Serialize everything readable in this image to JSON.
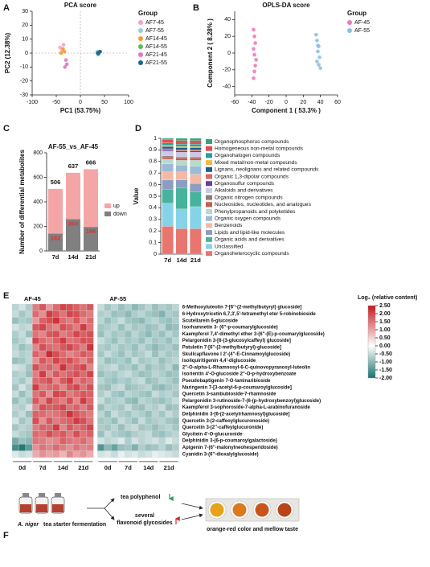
{
  "panel_labels": [
    "A",
    "B",
    "C",
    "D",
    "E",
    "F"
  ],
  "chart_data": [
    {
      "type": "scatter",
      "title": "PCA score",
      "x_label": "PC1 (53.75%)",
      "y_label": "PC2 (12.38%)",
      "xlim": [
        -100,
        100
      ],
      "ylim": [
        -30,
        30
      ],
      "xticks": [
        -100,
        -50,
        0,
        50,
        100
      ],
      "yticks": [
        -30,
        -20,
        -10,
        0,
        10,
        20,
        30
      ],
      "zero_lines": true,
      "legend_title": "Group",
      "series": [
        {
          "name": "AF7-45",
          "color": "#f4a3c6",
          "x": [
            -38,
            -35,
            -42
          ],
          "y": [
            2,
            6,
            4
          ]
        },
        {
          "name": "AF7-55",
          "color": "#9ecae1",
          "x": [
            35,
            38,
            40
          ],
          "y": [
            1,
            0,
            1
          ]
        },
        {
          "name": "AF14-45",
          "color": "#f39c35",
          "x": [
            -40,
            -36,
            -33
          ],
          "y": [
            0,
            3,
            1
          ]
        },
        {
          "name": "AF14-55",
          "color": "#5cb85c",
          "x": [
            36,
            39,
            37
          ],
          "y": [
            0,
            1,
            -1
          ]
        },
        {
          "name": "AF21-45",
          "color": "#e377c2",
          "x": [
            -30,
            -28,
            -32
          ],
          "y": [
            -5,
            -8,
            -10
          ]
        },
        {
          "name": "AF21-55",
          "color": "#1f5f9f",
          "x": [
            38,
            41,
            36
          ],
          "y": [
            0,
            1,
            0
          ]
        }
      ]
    },
    {
      "type": "scatter",
      "title": "OPLS-DA score",
      "x_label": "Component 1 ( 53.3% )",
      "y_label": "Component 2 ( 8.28% )",
      "xlim": [
        -60,
        60
      ],
      "ylim": [
        -50,
        50
      ],
      "xticks": [
        -60,
        -40,
        -20,
        0,
        20,
        40,
        60
      ],
      "yticks": [
        -40,
        -20,
        0,
        20,
        40
      ],
      "zero_lines": false,
      "legend_title": "Group",
      "series": [
        {
          "name": "AF-45",
          "color": "#f07ab8",
          "x": [
            -38,
            -37,
            -36,
            -38,
            -37,
            -35,
            -36,
            -37,
            -38
          ],
          "y": [
            28,
            20,
            12,
            5,
            -2,
            -8,
            -15,
            -22,
            -30
          ]
        },
        {
          "name": "AF-55",
          "color": "#8fbfe6",
          "x": [
            35,
            36,
            38,
            37,
            39,
            36,
            38,
            40,
            37
          ],
          "y": [
            22,
            15,
            8,
            2,
            -5,
            -10,
            -14,
            -18,
            9
          ]
        }
      ]
    },
    {
      "type": "bar",
      "stacked": true,
      "title": "AF-55_vs_AF-45",
      "y_label": "Number of differential metabolites",
      "categories": [
        "7d",
        "14d",
        "21d"
      ],
      "ylim": [
        0,
        800
      ],
      "yticks": [
        0,
        200,
        400,
        600,
        800
      ],
      "totals": [
        506,
        637,
        666
      ],
      "series": [
        {
          "name": "down",
          "color": "#808080",
          "label_color": "#e03030",
          "show_labels": true,
          "values": [
            142,
            260,
            196
          ]
        },
        {
          "name": "up",
          "color": "#f4a6a6",
          "show_labels": false,
          "values": [
            364,
            377,
            470
          ]
        }
      ]
    },
    {
      "type": "bar",
      "stacked": true,
      "y_label": "Value",
      "categories": [
        "7d",
        "14d",
        "21d"
      ],
      "ylim": [
        0,
        1
      ],
      "yticks": [
        0,
        0.1,
        0.2,
        0.3,
        0.4,
        0.5,
        0.6,
        0.7,
        0.8,
        0.9,
        1
      ],
      "series": [
        {
          "name": "Organoheterocyclic compounds",
          "color": "#e8766f",
          "values": [
            0.24,
            0.22,
            0.22
          ]
        },
        {
          "name": "Unclassified",
          "color": "#86d3e8",
          "values": [
            0.2,
            0.17,
            0.19
          ]
        },
        {
          "name": "Organic acids and derivatives",
          "color": "#47b39c",
          "values": [
            0.12,
            0.18,
            0.13
          ]
        },
        {
          "name": "Lipids and lipid-like molecules",
          "color": "#8b9dc3",
          "values": [
            0.08,
            0.07,
            0.07
          ]
        },
        {
          "name": "Benzenoids",
          "color": "#f4b9a6",
          "values": [
            0.07,
            0.07,
            0.08
          ]
        },
        {
          "name": "Organic oxygen compounds",
          "color": "#9dbad5",
          "values": [
            0.07,
            0.06,
            0.07
          ]
        },
        {
          "name": "Phenylpropanoids and polyketides",
          "color": "#b3dccf",
          "values": [
            0.04,
            0.04,
            0.05
          ]
        },
        {
          "name": "Nucleosides, nucleotides, and analogues",
          "color": "#c65b4f",
          "values": [
            0.02,
            0.02,
            0.02
          ]
        },
        {
          "name": "Organic nitrogen compounds",
          "color": "#8f7f6f",
          "values": [
            0.01,
            0.01,
            0.01
          ]
        },
        {
          "name": "Alkaloids and derivatives",
          "color": "#c9c9e6",
          "values": [
            0.04,
            0.04,
            0.04
          ]
        },
        {
          "name": "Organosulfur compounds",
          "color": "#6a3fa0",
          "values": [
            0.01,
            0.01,
            0.01
          ]
        },
        {
          "name": "Organic 1,3-dipolar compounds",
          "color": "#d96a66",
          "values": [
            0.01,
            0.01,
            0.01
          ]
        },
        {
          "name": "Lignans, neolignans and related compounds",
          "color": "#1f5f8b",
          "values": [
            0.02,
            0.02,
            0.02
          ]
        },
        {
          "name": "Mixed metal/non-metal compounds",
          "color": "#f5b942",
          "values": [
            0.01,
            0.01,
            0.01
          ]
        },
        {
          "name": "Organohalogen compounds",
          "color": "#1fa0a5",
          "values": [
            0.02,
            0.02,
            0.02
          ]
        },
        {
          "name": "Homogeneous non-metal compounds",
          "color": "#e05050",
          "values": [
            0.03,
            0.03,
            0.03
          ]
        },
        {
          "name": "Organophosphorus compounds",
          "color": "#3aa37a",
          "values": [
            0.01,
            0.02,
            0.02
          ]
        }
      ]
    },
    {
      "type": "heatmap",
      "groups": [
        "AF-45",
        "AF-55"
      ],
      "column_labels": [
        "0d",
        "7d",
        "14d",
        "21d",
        "0d",
        "7d",
        "14d",
        "21d"
      ],
      "colorbar_title": "Log₂ (relative content)",
      "zlim": [
        -2,
        2.5
      ],
      "colors": [
        "#17736f",
        "#ffffff",
        "#c8171e"
      ],
      "zticks": [
        {
          "value": 2.5,
          "label": "2.50"
        },
        {
          "value": 2,
          "label": "2.00"
        },
        {
          "value": 1.5,
          "label": "1.50"
        },
        {
          "value": 1,
          "label": "1.00"
        },
        {
          "value": 0.5,
          "label": "0.50"
        },
        {
          "value": 0,
          "label": "0.00"
        },
        {
          "value": -0.5,
          "label": "-0.50"
        },
        {
          "value": -1,
          "label": "-1.00"
        },
        {
          "value": -1.5,
          "label": "-1.50"
        },
        {
          "value": -2,
          "label": "-2.00"
        }
      ],
      "rows": [
        "6-Methoxyluteolin 7-[6''-(2-methylbutyryl) glucoside]",
        "6-Hydroxytricetin 6,7,3',5'-tetramethyl eter 5-robinobioside",
        "Scutellarein 6-glucoside",
        "Isorhamnetin 3- (6''-p-coumarylglucoside)",
        "Kaempferol 7,4'-dimethyl ether 3-(6''-(E)-p-coumarylglucoside)",
        "Pelargonidin 3-[6-(3-glucosylcaffeyl) glucoside]",
        "Patuletin 7-[6''-(2-methylbutyryl)-glucoside]",
        "Skullcapflavone I 2'-(4''-E-Cinnamoylglucoside)",
        "Isoliquiritigenin 4,4'-diglucoside",
        "2''-O-alpha-L-Rhamnosyl-6-C-quinovopyranosyl-luteolin",
        "Isorientin 4'-O-glucoside 2''-O-p-hydroxybenzoate",
        "Pseudobaptigenin 7-O-laminaribioside",
        "Naringenin 7-[3-acetyl-6-p-coumaroylglucoside]",
        "Quercetin 3-sambubioside-7-rhamnoside",
        "Pelargonidin 3-rutinoside-7-(6-(p-hydroxybenzoyl)glucoside)",
        "Kaempferol 3-sophoroside-7-alpha-L-arabinofuranoside",
        "Delphinidin 3-[6-(2-acetylrhamnosyl)glucoside]",
        "Quercetin 3-(2-caffeoylglucuronoside)",
        "Quercetin 3-(2''-caffeylglucuronide)",
        "Glycitein 4'-O-glucuronide",
        "Delphinidin 3-(6-p-coumaroylgalactoside)",
        "Apigenin 7-(6''-malonylneohesperidoside)",
        "Cyanidin 3-(6''-dioxalylglucoside)"
      ],
      "values": [
        [
          -0.6,
          -0.4,
          -0.7,
          1.4,
          1.8,
          1.1,
          1.6,
          2.0,
          1.9,
          1.7,
          1.5,
          1.8,
          -0.5,
          -0.8,
          -0.6,
          -0.9,
          -0.7,
          -1.0,
          -0.8,
          -0.6,
          -0.9,
          -0.7,
          -0.8,
          -0.6
        ],
        [
          -0.5,
          -0.8,
          -0.6,
          1.6,
          1.2,
          2.1,
          1.8,
          1.5,
          2.0,
          1.9,
          1.6,
          1.4,
          -0.7,
          -0.6,
          -0.9,
          -0.8,
          -1.0,
          -0.7,
          -0.6,
          -0.8,
          -0.9,
          -1.1,
          -0.7,
          -0.8
        ],
        [
          -0.9,
          -0.7,
          -0.8,
          1.1,
          1.7,
          1.9,
          2.2,
          1.6,
          1.4,
          1.8,
          1.3,
          1.6,
          -0.6,
          -0.9,
          -0.7,
          -0.5,
          -0.8,
          -0.9,
          -1.0,
          -0.7,
          -0.6,
          -0.8,
          -0.9,
          -0.7
        ],
        [
          -0.4,
          -0.6,
          -0.5,
          1.8,
          2.0,
          1.5,
          1.3,
          1.9,
          1.7,
          1.4,
          2.1,
          1.5,
          -0.8,
          -0.7,
          -0.6,
          -0.9,
          -0.6,
          -0.8,
          -0.7,
          -0.9,
          -0.8,
          -0.6,
          -1.0,
          -0.9
        ],
        [
          -0.7,
          -0.5,
          -0.9,
          1.5,
          1.3,
          1.8,
          1.9,
          1.4,
          1.6,
          2.0,
          1.7,
          1.9,
          -0.9,
          -0.6,
          -0.8,
          -0.7,
          -0.9,
          -0.6,
          -0.8,
          -1.0,
          -0.7,
          -0.9,
          -0.6,
          -0.8
        ],
        [
          -0.8,
          -0.6,
          -0.4,
          2.0,
          1.6,
          1.4,
          1.7,
          2.1,
          1.5,
          1.6,
          1.9,
          1.8,
          -0.5,
          -0.7,
          -0.9,
          -0.6,
          -0.8,
          -0.7,
          -0.9,
          -0.6,
          -0.8,
          -0.7,
          -0.9,
          -0.6
        ],
        [
          -0.6,
          -0.9,
          -0.7,
          1.3,
          1.9,
          1.6,
          1.5,
          1.8,
          2.0,
          1.7,
          1.4,
          2.2,
          -0.7,
          -0.8,
          -0.6,
          -0.8,
          -0.7,
          -0.9,
          -0.6,
          -0.8,
          -1.0,
          -0.8,
          -0.7,
          -0.9
        ],
        [
          -0.5,
          -0.7,
          -0.6,
          1.7,
          1.4,
          2.3,
          1.9,
          1.6,
          1.3,
          1.5,
          1.8,
          1.6,
          -0.8,
          -0.5,
          -0.7,
          -0.9,
          -0.6,
          -0.8,
          -0.7,
          -0.5,
          -0.9,
          -0.6,
          -0.8,
          -0.7
        ],
        [
          -0.9,
          -0.8,
          -0.6,
          1.2,
          1.8,
          1.5,
          2.0,
          1.7,
          1.9,
          1.6,
          1.3,
          1.7,
          -0.6,
          -0.9,
          -0.8,
          -0.7,
          -0.9,
          -0.5,
          -0.8,
          -0.7,
          -0.6,
          -0.9,
          -0.7,
          -0.6
        ],
        [
          -0.4,
          -0.5,
          -0.8,
          1.9,
          1.5,
          1.7,
          1.4,
          2.2,
          1.6,
          1.8,
          2.0,
          1.3,
          -0.7,
          -0.6,
          -0.5,
          -0.8,
          -0.7,
          -0.9,
          -0.6,
          -0.9,
          -0.7,
          -0.8,
          -0.6,
          -1.0
        ],
        [
          -0.7,
          -0.6,
          -0.9,
          1.4,
          2.1,
          1.3,
          1.8,
          1.5,
          1.7,
          1.9,
          1.6,
          2.0,
          -0.9,
          -0.7,
          -0.8,
          -0.6,
          -0.5,
          -0.7,
          -0.9,
          -0.8,
          -0.6,
          -0.7,
          -0.9,
          -0.8
        ],
        [
          -0.6,
          -0.8,
          -0.5,
          1.6,
          1.7,
          1.9,
          1.3,
          1.8,
          2.1,
          1.4,
          1.7,
          1.5,
          -0.6,
          -0.8,
          -0.9,
          -0.7,
          -0.8,
          -0.6,
          -0.5,
          -0.9,
          -0.8,
          -0.6,
          -0.7,
          -0.9
        ],
        [
          -0.8,
          -0.4,
          -0.7,
          2.1,
          1.4,
          1.6,
          1.7,
          1.3,
          1.8,
          2.0,
          1.5,
          1.9,
          -0.8,
          -0.9,
          -0.6,
          -0.5,
          -0.9,
          -0.8,
          -0.7,
          -0.6,
          -0.9,
          -1.0,
          -0.8,
          -0.7
        ],
        [
          -0.5,
          -0.9,
          -0.6,
          1.5,
          1.8,
          1.2,
          2.0,
          1.9,
          1.4,
          1.6,
          1.8,
          1.7,
          -0.7,
          -0.5,
          -0.8,
          -0.9,
          -0.6,
          -0.7,
          -0.8,
          -0.9,
          -0.5,
          -0.7,
          -0.6,
          -0.8
        ],
        [
          -0.9,
          -0.6,
          -0.8,
          1.8,
          1.3,
          2.0,
          1.6,
          1.4,
          1.9,
          1.3,
          2.1,
          1.6,
          -0.5,
          -0.8,
          -0.7,
          -0.6,
          -0.9,
          -1.0,
          -0.6,
          -0.7,
          -0.8,
          -0.9,
          -0.7,
          -0.5
        ],
        [
          -0.6,
          -0.7,
          -0.4,
          1.3,
          1.9,
          1.7,
          1.8,
          2.0,
          1.5,
          1.7,
          1.4,
          1.8,
          -0.9,
          -0.6,
          -0.7,
          -0.8,
          -0.5,
          -0.8,
          -0.9,
          -0.6,
          -0.7,
          -0.5,
          -0.9,
          -0.8
        ],
        [
          -0.7,
          -0.5,
          -0.9,
          1.7,
          1.6,
          1.4,
          1.5,
          1.7,
          2.2,
          1.8,
          1.6,
          1.4,
          -0.6,
          -0.9,
          -0.5,
          -0.7,
          -0.8,
          -0.6,
          -0.7,
          -0.9,
          -0.6,
          -0.8,
          -0.5,
          -0.7
        ],
        [
          -0.4,
          -0.8,
          -0.6,
          1.9,
          1.2,
          1.8,
          1.4,
          1.6,
          1.7,
          2.1,
          1.9,
          1.5,
          -0.8,
          -0.7,
          -0.9,
          -0.5,
          -0.7,
          -0.9,
          -0.5,
          -0.8,
          -0.7,
          -0.6,
          -0.8,
          -0.9
        ],
        [
          -0.8,
          -0.6,
          -0.7,
          1.4,
          1.7,
          1.6,
          2.1,
          1.3,
          1.8,
          1.5,
          1.7,
          2.0,
          -0.7,
          -0.8,
          -0.6,
          -0.9,
          -0.6,
          -0.5,
          -0.8,
          -0.7,
          -0.9,
          -0.7,
          -0.6,
          -0.8
        ],
        [
          -0.5,
          -0.7,
          -0.8,
          1.6,
          1.5,
          1.9,
          1.6,
          1.8,
          1.4,
          1.9,
          1.5,
          1.7,
          -0.9,
          -0.5,
          -0.7,
          -0.8,
          -0.9,
          -0.7,
          -0.6,
          -0.5,
          -0.8,
          -0.9,
          -0.7,
          -0.6
        ],
        [
          -1.2,
          -0.9,
          -1.0,
          1.5,
          1.4,
          1.2,
          1.3,
          1.7,
          1.5,
          1.4,
          1.6,
          1.3,
          -0.4,
          -0.6,
          -0.5,
          -0.3,
          -0.7,
          -0.4,
          -0.6,
          -0.5,
          -0.4,
          -0.6,
          -0.3,
          -0.5
        ],
        [
          -1.6,
          -1.9,
          -1.4,
          1.2,
          1.5,
          1.3,
          1.6,
          1.4,
          1.2,
          1.5,
          1.3,
          1.4,
          -1.5,
          -1.0,
          -1.3,
          -0.9,
          -0.8,
          -1.1,
          -0.7,
          -0.9,
          -0.8,
          -0.6,
          -0.9,
          -0.7
        ],
        [
          -0.3,
          -0.5,
          -0.4,
          0.9,
          1.2,
          1.0,
          1.1,
          0.8,
          1.3,
          1.0,
          1.2,
          0.9,
          -0.4,
          -0.3,
          -0.5,
          -0.2,
          -0.4,
          -0.3,
          -0.5,
          -0.4,
          -0.2,
          -0.3,
          -0.4,
          -0.5
        ]
      ]
    }
  ],
  "diagram": {
    "source_italic": "A. niger",
    "source_label": "tea starter fermentation",
    "decrease_label": "tea polyphenol",
    "increase_label_1": "several",
    "increase_label_2": "flavonoid glycosides",
    "result_label": "orange-red color and mellow taste"
  }
}
